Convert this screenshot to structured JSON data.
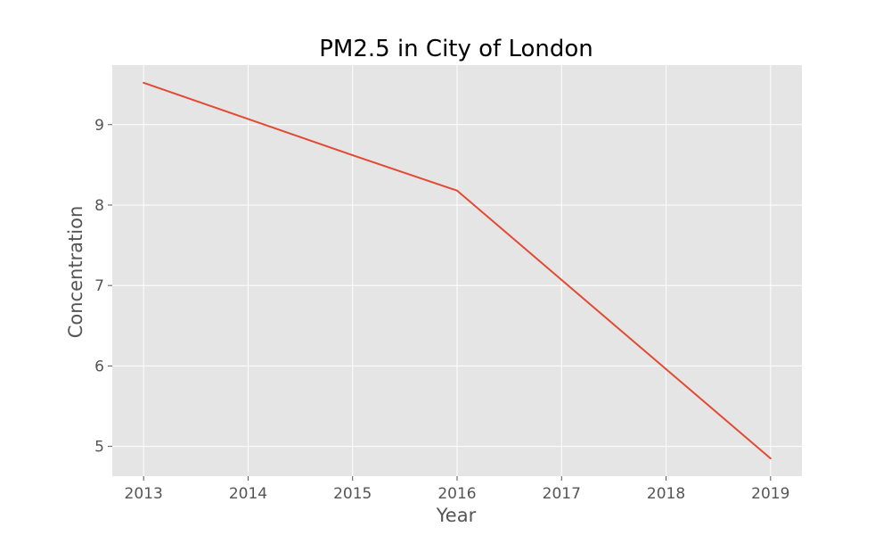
{
  "chart_data": {
    "type": "line",
    "title": "PM2.5 in City of London",
    "xlabel": "Year",
    "ylabel": "Concentration",
    "x": [
      2013,
      2014,
      2015,
      2016,
      2017,
      2018,
      2019
    ],
    "series": [
      {
        "values": [
          9.52,
          9.07,
          8.62,
          8.18,
          7.07,
          5.96,
          4.85
        ],
        "color": "#e24a33"
      }
    ],
    "xlim": [
      2012.7,
      2019.3
    ],
    "ylim": [
      4.63,
      9.74
    ],
    "xticks": [
      2013,
      2014,
      2015,
      2016,
      2017,
      2018,
      2019
    ],
    "yticks": [
      5,
      6,
      7,
      8,
      9
    ],
    "grid": true,
    "background_color": "#e5e5e5"
  }
}
